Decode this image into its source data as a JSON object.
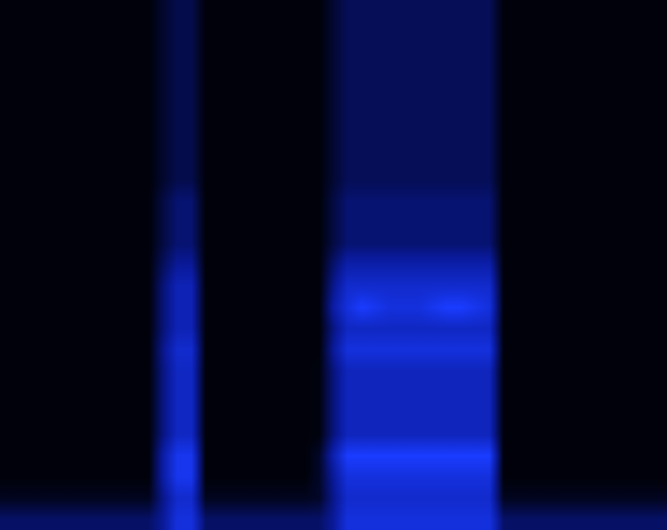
{
  "chart_data": {
    "type": "heatmap",
    "tick_labels": false,
    "zlim": [
      0,
      1
    ],
    "cells": [
      [
        0.02,
        0.02,
        0.02,
        0.02,
        0.02,
        0.02,
        0.02,
        0.02,
        0.02,
        0.02,
        0.02,
        0.09,
        0.15,
        0.15,
        0.02,
        0.02,
        0.02,
        0.02,
        0.02,
        0.02,
        0.02,
        0.02,
        0.02,
        0.1,
        0.17,
        0.17,
        0.17,
        0.17,
        0.17,
        0.17,
        0.17,
        0.17,
        0.17,
        0.17,
        0.17,
        0.02,
        0.02,
        0.02,
        0.02,
        0.02,
        0.02,
        0.02,
        0.02,
        0.02,
        0.02,
        0.02,
        0.02
      ],
      [
        0.02,
        0.02,
        0.02,
        0.02,
        0.02,
        0.02,
        0.02,
        0.02,
        0.02,
        0.02,
        0.02,
        0.09,
        0.15,
        0.15,
        0.02,
        0.02,
        0.02,
        0.02,
        0.02,
        0.02,
        0.02,
        0.02,
        0.02,
        0.1,
        0.17,
        0.17,
        0.17,
        0.17,
        0.17,
        0.17,
        0.17,
        0.17,
        0.17,
        0.17,
        0.17,
        0.02,
        0.02,
        0.02,
        0.02,
        0.02,
        0.02,
        0.02,
        0.02,
        0.02,
        0.02,
        0.02,
        0.02
      ],
      [
        0.02,
        0.02,
        0.02,
        0.02,
        0.02,
        0.02,
        0.02,
        0.02,
        0.02,
        0.02,
        0.02,
        0.09,
        0.15,
        0.15,
        0.02,
        0.02,
        0.02,
        0.02,
        0.02,
        0.02,
        0.02,
        0.02,
        0.02,
        0.1,
        0.17,
        0.17,
        0.17,
        0.17,
        0.17,
        0.17,
        0.17,
        0.17,
        0.17,
        0.17,
        0.17,
        0.02,
        0.02,
        0.02,
        0.02,
        0.02,
        0.02,
        0.02,
        0.02,
        0.02,
        0.02,
        0.02,
        0.02
      ],
      [
        0.02,
        0.02,
        0.02,
        0.02,
        0.02,
        0.02,
        0.02,
        0.02,
        0.02,
        0.02,
        0.02,
        0.09,
        0.15,
        0.15,
        0.02,
        0.02,
        0.02,
        0.02,
        0.02,
        0.02,
        0.02,
        0.02,
        0.02,
        0.1,
        0.17,
        0.17,
        0.17,
        0.17,
        0.17,
        0.17,
        0.17,
        0.17,
        0.17,
        0.17,
        0.17,
        0.02,
        0.02,
        0.02,
        0.02,
        0.02,
        0.02,
        0.02,
        0.02,
        0.02,
        0.02,
        0.02,
        0.02
      ],
      [
        0.02,
        0.02,
        0.02,
        0.02,
        0.02,
        0.02,
        0.02,
        0.02,
        0.02,
        0.02,
        0.02,
        0.09,
        0.15,
        0.15,
        0.02,
        0.02,
        0.02,
        0.02,
        0.02,
        0.02,
        0.02,
        0.02,
        0.02,
        0.1,
        0.17,
        0.17,
        0.17,
        0.17,
        0.17,
        0.17,
        0.17,
        0.17,
        0.17,
        0.17,
        0.17,
        0.02,
        0.02,
        0.02,
        0.02,
        0.02,
        0.02,
        0.02,
        0.02,
        0.02,
        0.02,
        0.02,
        0.02
      ],
      [
        0.02,
        0.02,
        0.02,
        0.02,
        0.02,
        0.02,
        0.02,
        0.02,
        0.02,
        0.02,
        0.02,
        0.09,
        0.15,
        0.15,
        0.02,
        0.02,
        0.02,
        0.02,
        0.02,
        0.02,
        0.02,
        0.02,
        0.02,
        0.1,
        0.17,
        0.17,
        0.17,
        0.17,
        0.17,
        0.17,
        0.17,
        0.17,
        0.17,
        0.17,
        0.17,
        0.02,
        0.02,
        0.02,
        0.02,
        0.02,
        0.02,
        0.02,
        0.02,
        0.02,
        0.02,
        0.02,
        0.02
      ],
      [
        0.02,
        0.02,
        0.02,
        0.02,
        0.02,
        0.02,
        0.02,
        0.02,
        0.02,
        0.02,
        0.02,
        0.09,
        0.15,
        0.15,
        0.02,
        0.02,
        0.02,
        0.02,
        0.02,
        0.02,
        0.02,
        0.02,
        0.02,
        0.1,
        0.17,
        0.17,
        0.17,
        0.17,
        0.17,
        0.17,
        0.17,
        0.17,
        0.17,
        0.17,
        0.17,
        0.02,
        0.02,
        0.02,
        0.02,
        0.02,
        0.02,
        0.02,
        0.02,
        0.02,
        0.02,
        0.02,
        0.02
      ],
      [
        0.02,
        0.02,
        0.02,
        0.02,
        0.02,
        0.02,
        0.02,
        0.02,
        0.02,
        0.02,
        0.02,
        0.09,
        0.15,
        0.15,
        0.02,
        0.02,
        0.02,
        0.02,
        0.02,
        0.02,
        0.02,
        0.02,
        0.02,
        0.1,
        0.17,
        0.17,
        0.17,
        0.17,
        0.17,
        0.17,
        0.17,
        0.17,
        0.17,
        0.17,
        0.17,
        0.02,
        0.02,
        0.02,
        0.02,
        0.02,
        0.02,
        0.02,
        0.02,
        0.02,
        0.02,
        0.02,
        0.02
      ],
      [
        0.02,
        0.02,
        0.02,
        0.02,
        0.02,
        0.02,
        0.02,
        0.02,
        0.02,
        0.02,
        0.02,
        0.09,
        0.15,
        0.15,
        0.02,
        0.02,
        0.02,
        0.02,
        0.02,
        0.02,
        0.02,
        0.02,
        0.02,
        0.1,
        0.17,
        0.17,
        0.17,
        0.17,
        0.17,
        0.17,
        0.17,
        0.17,
        0.17,
        0.17,
        0.17,
        0.02,
        0.02,
        0.02,
        0.02,
        0.02,
        0.02,
        0.02,
        0.02,
        0.02,
        0.02,
        0.02,
        0.02
      ],
      [
        0.02,
        0.02,
        0.02,
        0.02,
        0.02,
        0.02,
        0.02,
        0.02,
        0.02,
        0.02,
        0.02,
        0.13,
        0.22,
        0.22,
        0.02,
        0.02,
        0.02,
        0.02,
        0.02,
        0.02,
        0.02,
        0.02,
        0.02,
        0.13,
        0.22,
        0.22,
        0.22,
        0.22,
        0.22,
        0.22,
        0.22,
        0.22,
        0.22,
        0.22,
        0.22,
        0.02,
        0.02,
        0.02,
        0.02,
        0.02,
        0.02,
        0.02,
        0.02,
        0.02,
        0.02,
        0.02,
        0.02
      ],
      [
        0.02,
        0.02,
        0.02,
        0.02,
        0.02,
        0.02,
        0.02,
        0.02,
        0.02,
        0.02,
        0.02,
        0.13,
        0.22,
        0.22,
        0.02,
        0.02,
        0.02,
        0.02,
        0.02,
        0.02,
        0.02,
        0.02,
        0.02,
        0.13,
        0.22,
        0.22,
        0.22,
        0.22,
        0.22,
        0.22,
        0.22,
        0.22,
        0.22,
        0.22,
        0.22,
        0.02,
        0.02,
        0.02,
        0.02,
        0.02,
        0.02,
        0.02,
        0.02,
        0.02,
        0.02,
        0.02,
        0.02
      ],
      [
        0.02,
        0.02,
        0.02,
        0.02,
        0.02,
        0.02,
        0.02,
        0.02,
        0.02,
        0.02,
        0.02,
        0.13,
        0.22,
        0.22,
        0.02,
        0.02,
        0.02,
        0.02,
        0.02,
        0.02,
        0.02,
        0.02,
        0.02,
        0.13,
        0.22,
        0.22,
        0.22,
        0.22,
        0.22,
        0.22,
        0.22,
        0.22,
        0.22,
        0.22,
        0.22,
        0.02,
        0.02,
        0.02,
        0.02,
        0.02,
        0.02,
        0.02,
        0.02,
        0.02,
        0.02,
        0.02,
        0.02
      ],
      [
        0.02,
        0.02,
        0.02,
        0.02,
        0.02,
        0.02,
        0.02,
        0.02,
        0.02,
        0.02,
        0.02,
        0.18,
        0.3,
        0.3,
        0.02,
        0.02,
        0.02,
        0.02,
        0.02,
        0.02,
        0.02,
        0.02,
        0.02,
        0.21,
        0.35,
        0.35,
        0.35,
        0.35,
        0.35,
        0.35,
        0.35,
        0.35,
        0.35,
        0.35,
        0.35,
        0.02,
        0.02,
        0.02,
        0.02,
        0.02,
        0.02,
        0.02,
        0.02,
        0.02,
        0.02,
        0.02,
        0.02
      ],
      [
        0.02,
        0.02,
        0.02,
        0.02,
        0.02,
        0.02,
        0.02,
        0.02,
        0.02,
        0.02,
        0.02,
        0.23,
        0.38,
        0.38,
        0.02,
        0.02,
        0.02,
        0.02,
        0.02,
        0.02,
        0.02,
        0.02,
        0.02,
        0.27,
        0.45,
        0.45,
        0.45,
        0.45,
        0.45,
        0.45,
        0.45,
        0.45,
        0.45,
        0.45,
        0.45,
        0.02,
        0.02,
        0.02,
        0.02,
        0.02,
        0.02,
        0.02,
        0.02,
        0.02,
        0.02,
        0.02,
        0.02
      ],
      [
        0.02,
        0.02,
        0.02,
        0.02,
        0.02,
        0.02,
        0.02,
        0.02,
        0.02,
        0.02,
        0.02,
        0.23,
        0.38,
        0.38,
        0.02,
        0.02,
        0.02,
        0.02,
        0.02,
        0.02,
        0.02,
        0.02,
        0.02,
        0.33,
        0.5,
        0.6,
        0.55,
        0.5,
        0.5,
        0.5,
        0.55,
        0.6,
        0.6,
        0.55,
        0.5,
        0.02,
        0.02,
        0.02,
        0.02,
        0.02,
        0.02,
        0.02,
        0.02,
        0.02,
        0.02,
        0.02,
        0.02
      ],
      [
        0.02,
        0.02,
        0.02,
        0.02,
        0.02,
        0.02,
        0.02,
        0.02,
        0.02,
        0.02,
        0.02,
        0.23,
        0.38,
        0.38,
        0.02,
        0.02,
        0.02,
        0.02,
        0.02,
        0.02,
        0.02,
        0.02,
        0.02,
        0.25,
        0.42,
        0.42,
        0.42,
        0.42,
        0.42,
        0.42,
        0.42,
        0.42,
        0.42,
        0.42,
        0.42,
        0.02,
        0.02,
        0.02,
        0.02,
        0.02,
        0.02,
        0.02,
        0.02,
        0.02,
        0.02,
        0.02,
        0.02
      ],
      [
        0.02,
        0.02,
        0.02,
        0.02,
        0.02,
        0.02,
        0.02,
        0.02,
        0.02,
        0.02,
        0.02,
        0.27,
        0.45,
        0.45,
        0.02,
        0.02,
        0.02,
        0.02,
        0.02,
        0.02,
        0.02,
        0.02,
        0.02,
        0.3,
        0.5,
        0.5,
        0.5,
        0.5,
        0.5,
        0.5,
        0.5,
        0.5,
        0.5,
        0.5,
        0.5,
        0.02,
        0.02,
        0.02,
        0.02,
        0.02,
        0.02,
        0.02,
        0.02,
        0.02,
        0.02,
        0.02,
        0.02
      ],
      [
        0.02,
        0.02,
        0.02,
        0.02,
        0.02,
        0.02,
        0.02,
        0.02,
        0.02,
        0.02,
        0.02,
        0.25,
        0.42,
        0.42,
        0.02,
        0.02,
        0.02,
        0.02,
        0.02,
        0.02,
        0.02,
        0.02,
        0.03,
        0.24,
        0.4,
        0.4,
        0.4,
        0.4,
        0.4,
        0.4,
        0.4,
        0.4,
        0.4,
        0.4,
        0.4,
        0.02,
        0.02,
        0.02,
        0.02,
        0.02,
        0.02,
        0.02,
        0.02,
        0.02,
        0.02,
        0.02,
        0.02
      ],
      [
        0.02,
        0.02,
        0.02,
        0.02,
        0.02,
        0.02,
        0.02,
        0.02,
        0.02,
        0.02,
        0.02,
        0.25,
        0.42,
        0.42,
        0.02,
        0.02,
        0.02,
        0.02,
        0.02,
        0.02,
        0.02,
        0.02,
        0.03,
        0.24,
        0.4,
        0.4,
        0.4,
        0.4,
        0.4,
        0.4,
        0.4,
        0.4,
        0.4,
        0.4,
        0.4,
        0.02,
        0.02,
        0.02,
        0.02,
        0.02,
        0.02,
        0.02,
        0.02,
        0.02,
        0.02,
        0.02,
        0.02
      ],
      [
        0.02,
        0.02,
        0.02,
        0.02,
        0.02,
        0.02,
        0.02,
        0.02,
        0.02,
        0.02,
        0.02,
        0.25,
        0.42,
        0.42,
        0.02,
        0.02,
        0.02,
        0.02,
        0.02,
        0.02,
        0.02,
        0.02,
        0.03,
        0.24,
        0.4,
        0.4,
        0.4,
        0.4,
        0.4,
        0.4,
        0.4,
        0.4,
        0.4,
        0.4,
        0.4,
        0.02,
        0.02,
        0.02,
        0.02,
        0.02,
        0.02,
        0.02,
        0.02,
        0.02,
        0.02,
        0.02,
        0.02
      ],
      [
        0.02,
        0.02,
        0.02,
        0.02,
        0.02,
        0.02,
        0.02,
        0.02,
        0.02,
        0.02,
        0.02,
        0.25,
        0.42,
        0.42,
        0.02,
        0.02,
        0.02,
        0.02,
        0.02,
        0.02,
        0.02,
        0.02,
        0.03,
        0.24,
        0.4,
        0.4,
        0.4,
        0.4,
        0.4,
        0.4,
        0.4,
        0.4,
        0.4,
        0.4,
        0.4,
        0.02,
        0.02,
        0.02,
        0.02,
        0.02,
        0.02,
        0.02,
        0.02,
        0.02,
        0.02,
        0.02,
        0.02
      ],
      [
        0.02,
        0.02,
        0.02,
        0.02,
        0.02,
        0.02,
        0.02,
        0.02,
        0.02,
        0.02,
        0.02,
        0.33,
        0.55,
        0.55,
        0.02,
        0.02,
        0.02,
        0.02,
        0.02,
        0.02,
        0.02,
        0.02,
        0.08,
        0.36,
        0.6,
        0.6,
        0.6,
        0.6,
        0.6,
        0.6,
        0.6,
        0.6,
        0.6,
        0.6,
        0.6,
        0.02,
        0.02,
        0.02,
        0.02,
        0.02,
        0.02,
        0.02,
        0.02,
        0.02,
        0.02,
        0.02,
        0.02
      ],
      [
        0.02,
        0.02,
        0.02,
        0.02,
        0.02,
        0.02,
        0.02,
        0.02,
        0.02,
        0.02,
        0.02,
        0.33,
        0.55,
        0.55,
        0.02,
        0.02,
        0.02,
        0.02,
        0.02,
        0.02,
        0.02,
        0.02,
        0.08,
        0.3,
        0.5,
        0.5,
        0.5,
        0.5,
        0.5,
        0.5,
        0.5,
        0.5,
        0.5,
        0.5,
        0.5,
        0.02,
        0.02,
        0.02,
        0.02,
        0.02,
        0.02,
        0.02,
        0.02,
        0.02,
        0.02,
        0.02,
        0.02
      ],
      [
        0.06,
        0.06,
        0.06,
        0.06,
        0.06,
        0.06,
        0.06,
        0.06,
        0.06,
        0.06,
        0.06,
        0.27,
        0.45,
        0.45,
        0.06,
        0.06,
        0.06,
        0.06,
        0.06,
        0.06,
        0.06,
        0.06,
        0.08,
        0.27,
        0.45,
        0.45,
        0.45,
        0.45,
        0.45,
        0.45,
        0.45,
        0.45,
        0.45,
        0.45,
        0.45,
        0.06,
        0.06,
        0.06,
        0.06,
        0.06,
        0.06,
        0.06,
        0.06,
        0.06,
        0.06,
        0.06,
        0.06
      ],
      [
        0.2,
        0.2,
        0.2,
        0.2,
        0.2,
        0.2,
        0.2,
        0.2,
        0.2,
        0.2,
        0.2,
        0.3,
        0.5,
        0.5,
        0.2,
        0.2,
        0.2,
        0.2,
        0.2,
        0.2,
        0.2,
        0.2,
        0.2,
        0.3,
        0.5,
        0.5,
        0.5,
        0.5,
        0.5,
        0.5,
        0.5,
        0.5,
        0.5,
        0.5,
        0.5,
        0.2,
        0.2,
        0.2,
        0.2,
        0.2,
        0.2,
        0.2,
        0.2,
        0.2,
        0.2,
        0.2,
        0.2
      ]
    ]
  }
}
